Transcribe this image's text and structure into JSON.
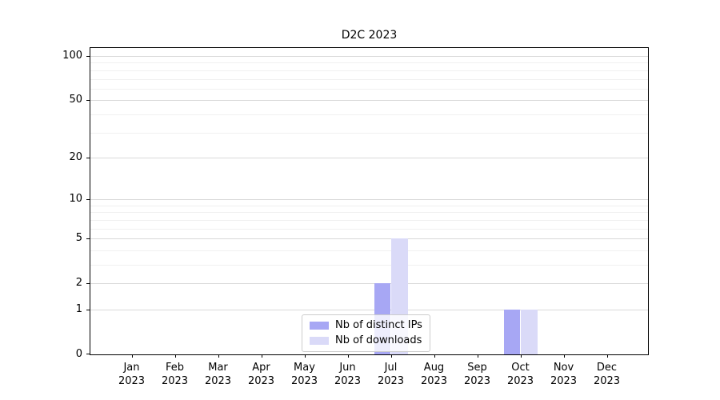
{
  "chart_data": {
    "type": "bar",
    "title": "D2C 2023",
    "categories": [
      "Jan",
      "Feb",
      "Mar",
      "Apr",
      "May",
      "Jun",
      "Jul",
      "Aug",
      "Sep",
      "Oct",
      "Nov",
      "Dec"
    ],
    "category_year": "2023",
    "series": [
      {
        "name": "Nb of distinct IPs",
        "color": "#a7a7f4",
        "values": [
          0,
          0,
          0,
          0,
          0,
          0,
          2,
          0,
          0,
          1,
          0,
          0
        ]
      },
      {
        "name": "Nb of downloads",
        "color": "#dadaf8",
        "values": [
          0,
          0,
          0,
          0,
          0,
          0,
          5,
          0,
          0,
          1,
          0,
          0
        ]
      }
    ],
    "xlabel": "",
    "ylabel": "",
    "yscale": "log1p",
    "ylim": [
      0,
      113
    ],
    "yticks": [
      100,
      50,
      20,
      10,
      5,
      2,
      1,
      0
    ],
    "yticks_minor": [
      90,
      80,
      70,
      60,
      40,
      30,
      9,
      8,
      7,
      6,
      4,
      3
    ],
    "grid": "horizontal",
    "legend": {
      "position": "lower center",
      "entries": [
        "Nb of distinct IPs",
        "Nb of downloads"
      ]
    },
    "colors": {
      "major_grid": "#d9d9d9",
      "minor_grid": "#f0f0f0",
      "spine": "#000000"
    }
  }
}
